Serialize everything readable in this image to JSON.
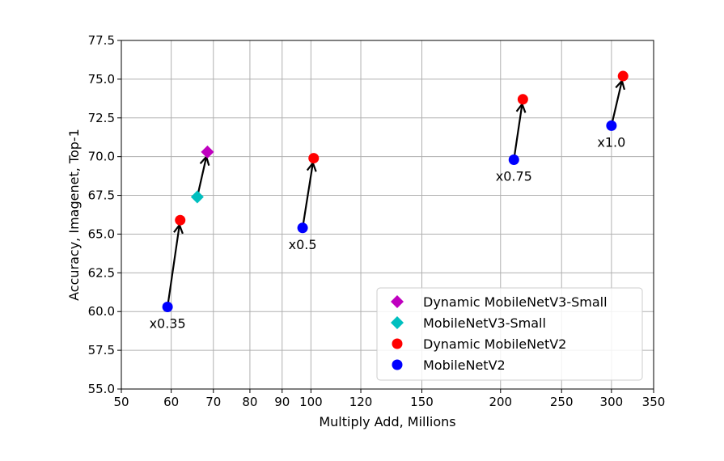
{
  "chart_data": {
    "type": "scatter",
    "xlabel": "Multiply Add, Millions",
    "ylabel": "Accuracy, Imagenet, Top-1",
    "x_scale": "log",
    "xlim": [
      50,
      350
    ],
    "ylim": [
      55.0,
      77.5
    ],
    "x_ticks": [
      50,
      60,
      70,
      80,
      90,
      100,
      120,
      150,
      200,
      250,
      300,
      350
    ],
    "y_ticks": [
      55.0,
      57.5,
      60.0,
      62.5,
      65.0,
      67.5,
      70.0,
      72.5,
      75.0,
      77.5
    ],
    "grid": true,
    "legend_position": "lower-right",
    "colors": {
      "dynamic_mobilenetv3_small": "#bf00bf",
      "mobilenetv3_small": "#00bfbf",
      "dynamic_mobilenetv2": "#ff0000",
      "mobilenetv2": "#0000ff"
    },
    "series": [
      {
        "name": "Dynamic MobileNetV3-Small",
        "marker": "diamond",
        "color": "#bf00bf",
        "points": [
          {
            "x": 68.5,
            "y": 70.3
          }
        ]
      },
      {
        "name": "MobileNetV3-Small",
        "marker": "diamond",
        "color": "#00bfbf",
        "points": [
          {
            "x": 66,
            "y": 67.4
          }
        ]
      },
      {
        "name": "Dynamic MobileNetV2",
        "marker": "circle",
        "color": "#ff0000",
        "points": [
          {
            "x": 62,
            "y": 65.9
          },
          {
            "x": 101,
            "y": 69.9
          },
          {
            "x": 217,
            "y": 73.7
          },
          {
            "x": 313,
            "y": 75.2
          }
        ]
      },
      {
        "name": "MobileNetV2",
        "marker": "circle",
        "color": "#0000ff",
        "points": [
          {
            "x": 59.2,
            "y": 60.3
          },
          {
            "x": 97,
            "y": 65.4
          },
          {
            "x": 210,
            "y": 69.8
          },
          {
            "x": 300,
            "y": 72.0
          }
        ]
      }
    ],
    "arrows": [
      {
        "from": {
          "x": 59.2,
          "y": 60.3
        },
        "to": {
          "x": 62,
          "y": 65.9
        }
      },
      {
        "from": {
          "x": 66,
          "y": 67.4
        },
        "to": {
          "x": 68.5,
          "y": 70.3
        }
      },
      {
        "from": {
          "x": 97,
          "y": 65.4
        },
        "to": {
          "x": 101,
          "y": 69.9
        }
      },
      {
        "from": {
          "x": 210,
          "y": 69.8
        },
        "to": {
          "x": 217,
          "y": 73.7
        }
      },
      {
        "from": {
          "x": 300,
          "y": 72.0
        },
        "to": {
          "x": 313,
          "y": 75.2
        }
      }
    ],
    "annotations": [
      {
        "text": "x0.35",
        "x": 59.2,
        "y": 60.3
      },
      {
        "text": "x0.5",
        "x": 97,
        "y": 65.4
      },
      {
        "text": "x0.75",
        "x": 210,
        "y": 69.8
      },
      {
        "text": "x1.0",
        "x": 300,
        "y": 72.0
      }
    ]
  }
}
